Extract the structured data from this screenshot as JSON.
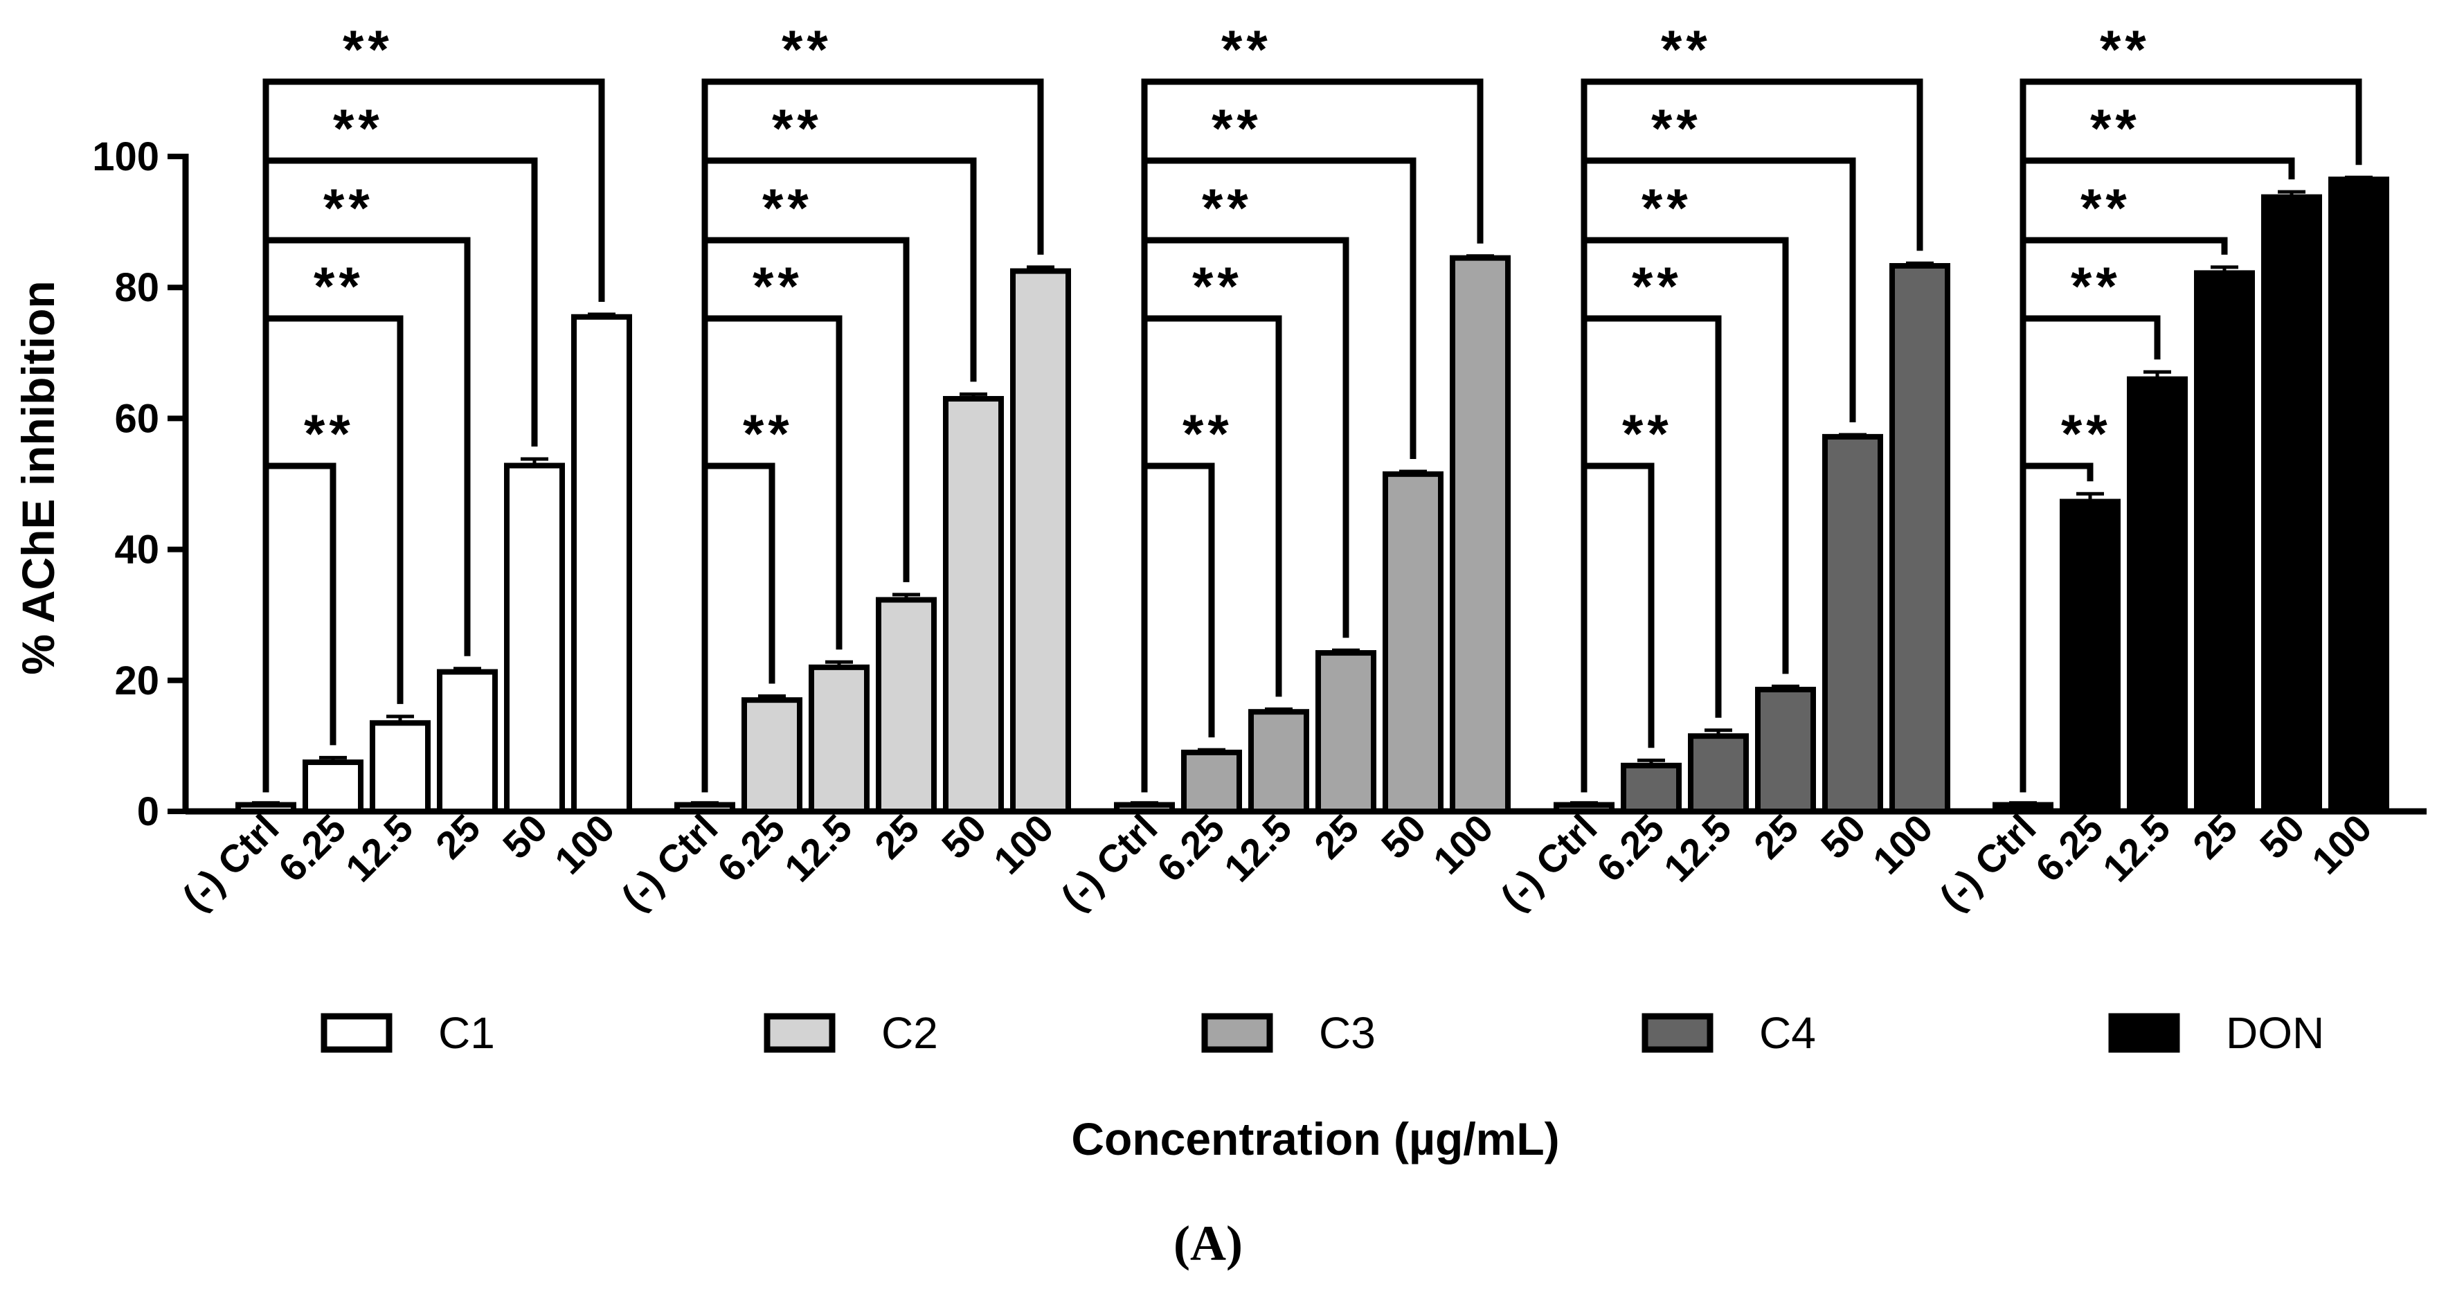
{
  "chart_data": {
    "type": "bar",
    "ylabel": "% AChE inhibition",
    "xlabel": "Concentration (µg/mL)",
    "panel_label": "(A)",
    "ylim": [
      0,
      100
    ],
    "yticks": [
      0,
      20,
      40,
      60,
      80,
      100
    ],
    "grid": false,
    "legend_position": "bottom",
    "categories": [
      "(-) Ctrl",
      "6.25",
      "12.5",
      "25",
      "50",
      "100"
    ],
    "significance_label": "**",
    "series": [
      {
        "name": "C1",
        "fill": "#ffffff",
        "values": [
          1,
          7.5,
          13.5,
          21.3,
          52.8,
          75.5
        ],
        "errors": [
          0.3,
          0.7,
          1.0,
          0.5,
          1.0,
          0.4
        ]
      },
      {
        "name": "C2",
        "fill": "#d3d3d3",
        "values": [
          1,
          17.0,
          22.0,
          32.3,
          63.0,
          82.5
        ],
        "errors": [
          0.3,
          0.6,
          0.8,
          0.8,
          0.7,
          0.6
        ]
      },
      {
        "name": "C3",
        "fill": "#a5a5a5",
        "values": [
          1,
          9.0,
          15.2,
          24.2,
          51.5,
          84.5
        ],
        "errors": [
          0.3,
          0.4,
          0.4,
          0.4,
          0.4,
          0.3
        ]
      },
      {
        "name": "C4",
        "fill": "#646464",
        "values": [
          1,
          7.0,
          11.5,
          18.6,
          57.2,
          83.3
        ],
        "errors": [
          0.3,
          0.8,
          0.9,
          0.5,
          0.3,
          0.4
        ]
      },
      {
        "name": "DON",
        "fill": "#000000",
        "values": [
          1,
          47.3,
          66.0,
          82.2,
          93.8,
          96.5
        ],
        "errors": [
          0.3,
          1.2,
          1.1,
          0.9,
          0.8,
          0.3
        ]
      }
    ]
  }
}
